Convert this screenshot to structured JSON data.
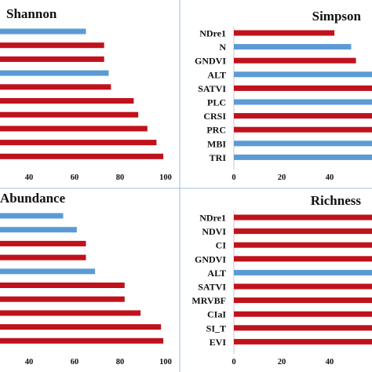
{
  "colors": {
    "red": "#c0121c",
    "blue": "#5b9bd5"
  },
  "chart_data": [
    {
      "type": "bar",
      "orientation": "horizontal",
      "title": "Shannon",
      "categories": [
        "",
        "",
        "",
        "",
        "",
        "",
        "",
        "",
        "",
        ""
      ],
      "values": [
        65,
        73,
        73,
        75,
        76,
        86,
        88,
        92,
        96,
        99
      ],
      "colors": [
        "blue",
        "red",
        "red",
        "blue",
        "red",
        "red",
        "red",
        "red",
        "red",
        "red"
      ],
      "xticks": [
        40,
        60,
        80,
        100
      ],
      "xlim": [
        27,
        105
      ]
    },
    {
      "type": "bar",
      "orientation": "horizontal",
      "title": "Simpson",
      "categories": [
        "NDre1",
        "N",
        "GNDVI",
        "ALT",
        "SATVI",
        "PLC",
        "CRSI",
        "PRC",
        "MBI",
        "TRI"
      ],
      "values": [
        42,
        49,
        51,
        59,
        60,
        61,
        62,
        63,
        64,
        65
      ],
      "colors": [
        "red",
        "blue",
        "red",
        "blue",
        "red",
        "blue",
        "red",
        "red",
        "blue",
        "blue"
      ],
      "xticks": [
        0,
        20,
        40
      ],
      "xlim": [
        0,
        56
      ]
    },
    {
      "type": "bar",
      "orientation": "horizontal",
      "title": "Abundance",
      "categories": [
        "",
        "",
        "",
        "",
        "",
        "",
        "",
        "",
        "",
        ""
      ],
      "values": [
        55,
        61,
        65,
        65,
        69,
        82,
        82,
        89,
        98,
        99
      ],
      "colors": [
        "blue",
        "blue",
        "red",
        "red",
        "blue",
        "red",
        "red",
        "red",
        "red",
        "red"
      ],
      "xticks": [
        40,
        60,
        80,
        100
      ],
      "xlim": [
        27,
        105
      ]
    },
    {
      "type": "bar",
      "orientation": "horizontal",
      "title": "Richness",
      "categories": [
        "NDre1",
        "NDVI",
        "CI",
        "GNDVI",
        "ALT",
        "SATVI",
        "MRVBF",
        "CIaI",
        "SI_T",
        "EVI"
      ],
      "values": [
        60,
        60,
        60,
        60,
        60,
        60,
        60,
        60,
        60,
        60
      ],
      "colors": [
        "red",
        "red",
        "red",
        "red",
        "blue",
        "red",
        "red",
        "red",
        "red",
        "red"
      ],
      "xticks": [
        0,
        20,
        40
      ],
      "xlim": [
        0,
        56
      ]
    }
  ]
}
